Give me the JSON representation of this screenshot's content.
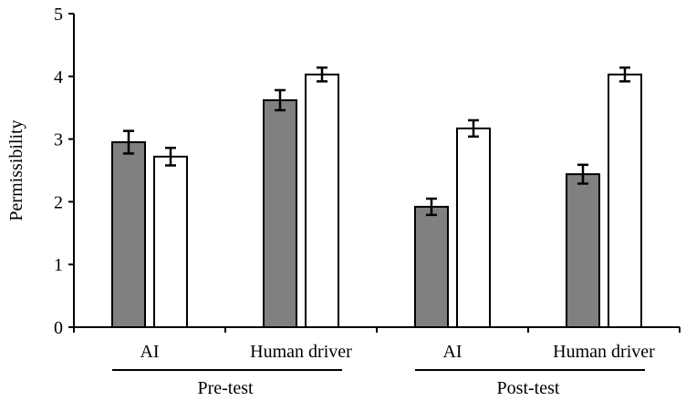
{
  "chart_data": {
    "type": "bar",
    "title": "",
    "xlabel": "",
    "ylabel": "Permissibility",
    "ylim": [
      0,
      5
    ],
    "yticks": [
      0,
      1,
      2,
      3,
      4,
      5
    ],
    "grid": false,
    "legend": null,
    "groups": [
      "Pre-test",
      "Post-test"
    ],
    "categories": [
      "AI",
      "Human driver",
      "AI",
      "Human driver"
    ],
    "category_groups": [
      "Pre-test",
      "Pre-test",
      "Post-test",
      "Post-test"
    ],
    "series": [
      {
        "name": "Series 1 (gray)",
        "color": "#808080",
        "values": [
          2.95,
          3.62,
          1.92,
          2.44
        ],
        "errors": [
          0.18,
          0.16,
          0.13,
          0.15
        ]
      },
      {
        "name": "Series 2 (white)",
        "color": "#ffffff",
        "values": [
          2.72,
          4.03,
          3.17,
          4.03
        ],
        "errors": [
          0.14,
          0.11,
          0.13,
          0.11
        ]
      }
    ]
  },
  "labels": {
    "ylabel": "Permissibility",
    "group_pre": "Pre-test",
    "group_post": "Post-test"
  }
}
